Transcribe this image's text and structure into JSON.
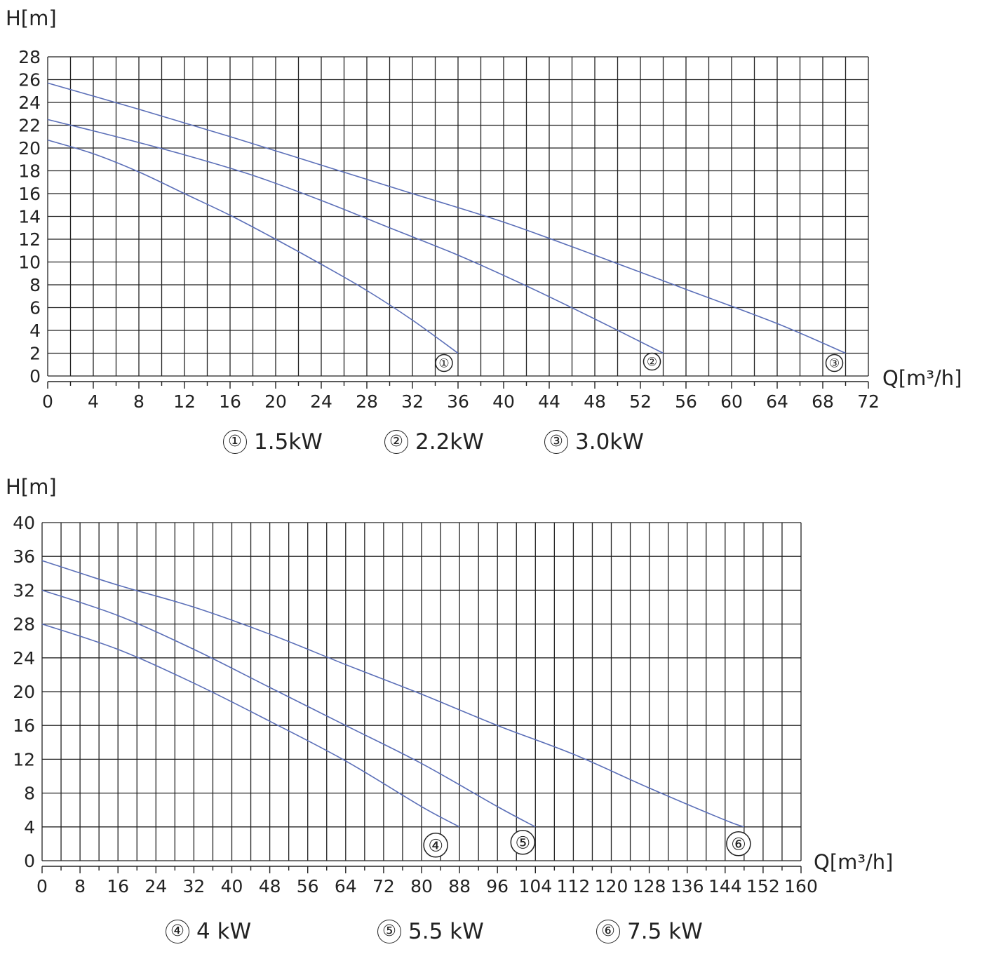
{
  "chart_data": [
    {
      "type": "line",
      "ylabel": "H[m]",
      "xlabel": "Q[m³/h]",
      "xlim": [
        0,
        72
      ],
      "ylim": [
        0,
        28
      ],
      "xticks": [
        0,
        4,
        8,
        12,
        16,
        20,
        24,
        28,
        32,
        36,
        40,
        44,
        48,
        52,
        56,
        60,
        64,
        68,
        72
      ],
      "yticks": [
        0,
        2,
        4,
        6,
        8,
        10,
        12,
        14,
        16,
        18,
        20,
        22,
        24,
        26,
        28
      ],
      "grid": true,
      "line_color": "#5b6fb8",
      "series": [
        {
          "name": "1.5kW",
          "marker": "①",
          "x": [
            0,
            4,
            8,
            12,
            16,
            20,
            24,
            28,
            32,
            36
          ],
          "y": [
            20.7,
            19.5,
            17.9,
            16.0,
            14.1,
            12.0,
            9.8,
            7.5,
            4.9,
            2.0
          ]
        },
        {
          "name": "2.2kW",
          "marker": "②",
          "x": [
            0,
            6,
            12,
            18,
            24,
            30,
            36,
            42,
            48,
            54
          ],
          "y": [
            22.5,
            21.0,
            19.4,
            17.6,
            15.4,
            13.0,
            10.6,
            7.9,
            5.0,
            2.0
          ]
        },
        {
          "name": "3.0kW",
          "marker": "③",
          "x": [
            0,
            8,
            16,
            24,
            32,
            40,
            48,
            56,
            64,
            70
          ],
          "y": [
            25.7,
            23.4,
            21.0,
            18.5,
            16.0,
            13.5,
            10.6,
            7.6,
            4.6,
            2.0
          ]
        }
      ],
      "legend": [
        {
          "marker": "①",
          "label": "1.5kW"
        },
        {
          "marker": "②",
          "label": "2.2kW"
        },
        {
          "marker": "③",
          "label": "3.0kW"
        }
      ]
    },
    {
      "type": "line",
      "ylabel": "H[m]",
      "xlabel": "Q[m³/h]",
      "xlim": [
        0,
        160
      ],
      "ylim": [
        0,
        40
      ],
      "xticks": [
        0,
        8,
        16,
        24,
        32,
        40,
        48,
        56,
        64,
        72,
        80,
        88,
        96,
        104,
        112,
        120,
        128,
        136,
        144,
        152,
        160
      ],
      "yticks": [
        0,
        4,
        8,
        12,
        16,
        20,
        24,
        28,
        32,
        36,
        40
      ],
      "grid": true,
      "line_color": "#5b6fb8",
      "series": [
        {
          "name": "4 kW",
          "marker": "④",
          "x": [
            0,
            16,
            32,
            48,
            64,
            80,
            88
          ],
          "y": [
            28.0,
            25.0,
            21.0,
            16.5,
            11.8,
            6.4,
            4.0
          ]
        },
        {
          "name": "5.5 kW",
          "marker": "⑤",
          "x": [
            0,
            16,
            32,
            48,
            64,
            80,
            96,
            104
          ],
          "y": [
            32.0,
            29.0,
            25.0,
            20.5,
            16.0,
            11.5,
            6.4,
            4.0
          ]
        },
        {
          "name": "7.5 kW",
          "marker": "⑥",
          "x": [
            0,
            16,
            32,
            48,
            64,
            80,
            96,
            112,
            128,
            144,
            148
          ],
          "y": [
            35.5,
            32.6,
            30.0,
            26.8,
            23.2,
            19.7,
            16.0,
            12.6,
            8.6,
            4.8,
            4.0
          ]
        }
      ],
      "legend": [
        {
          "marker": "④",
          "label": "4 kW"
        },
        {
          "marker": "⑤",
          "label": "5.5 kW"
        },
        {
          "marker": "⑥",
          "label": "7.5 kW"
        }
      ]
    }
  ]
}
